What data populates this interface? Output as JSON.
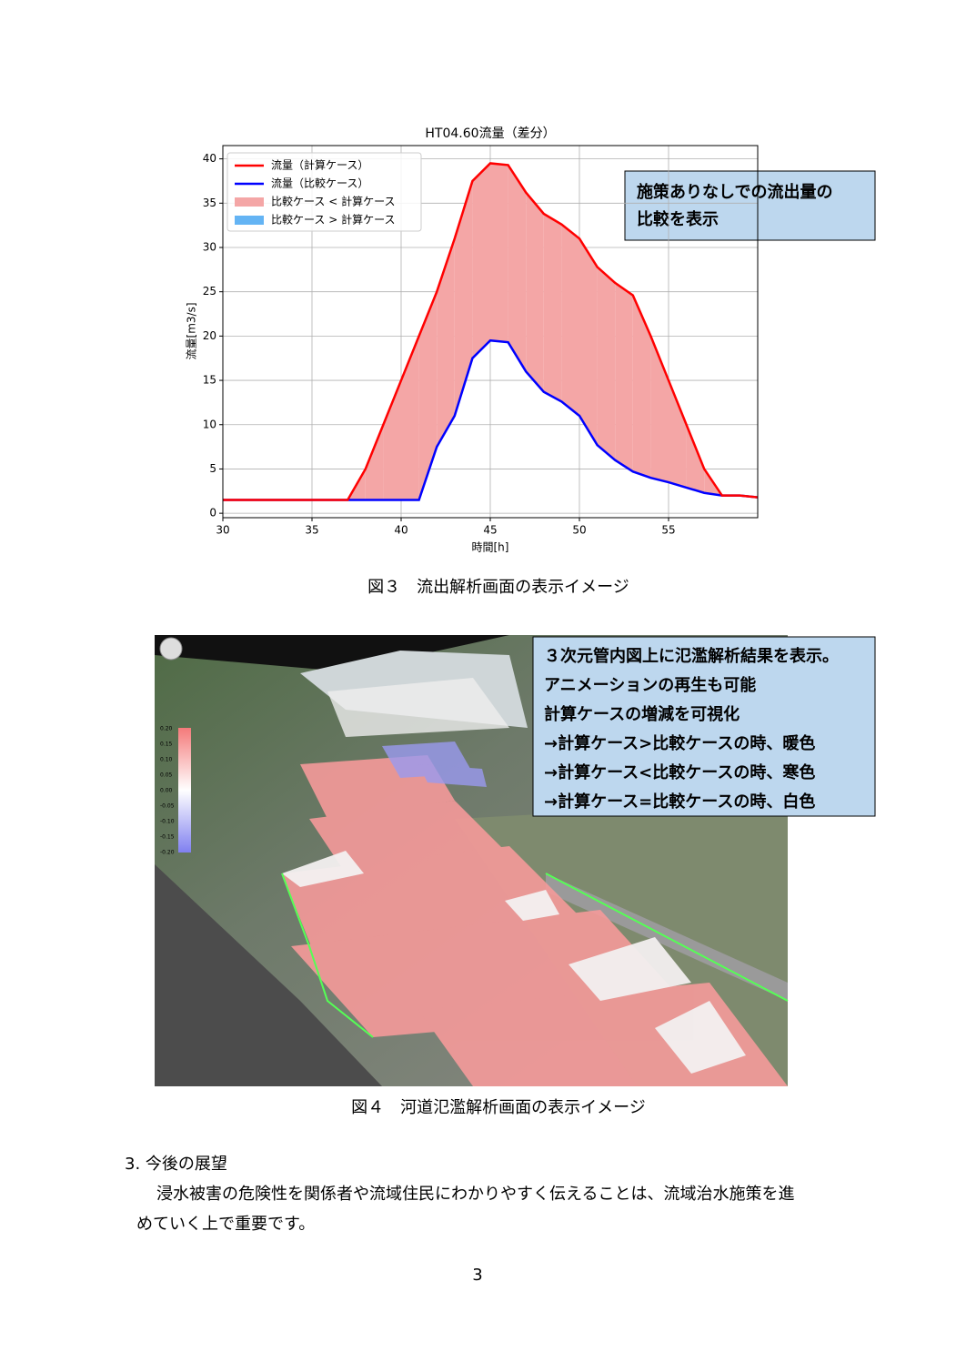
{
  "chart_data": {
    "type": "line",
    "title": "HT04.60流量（差分）",
    "x_label": "時間[h]",
    "y_label": "流量[m3/s]",
    "x": [
      30,
      31,
      32,
      33,
      34,
      35,
      36,
      37,
      38,
      39,
      40,
      41,
      42,
      43,
      44,
      45,
      46,
      47,
      48,
      49,
      50,
      51,
      52,
      53,
      54,
      55,
      56,
      57,
      58,
      59,
      60
    ],
    "series": [
      {
        "name": "流量（計算ケース）",
        "color": "#ff0000",
        "values": [
          1.5,
          1.5,
          1.5,
          1.5,
          1.5,
          1.5,
          1.5,
          1.5,
          5,
          10,
          15,
          20,
          25,
          31,
          37.5,
          39.5,
          39.3,
          36.2,
          33.8,
          32.6,
          31,
          27.8,
          26,
          24.6,
          20,
          15,
          10,
          5,
          2,
          2,
          1.8
        ]
      },
      {
        "name": "流量（比較ケース）",
        "color": "#0000ff",
        "values": [
          1.5,
          1.5,
          1.5,
          1.5,
          1.5,
          1.5,
          1.5,
          1.5,
          1.5,
          1.5,
          1.5,
          1.5,
          7.5,
          11,
          17.5,
          19.5,
          19.3,
          16,
          13.7,
          12.6,
          11,
          7.7,
          6,
          4.7,
          4,
          3.5,
          2.9,
          2.3,
          2,
          2,
          1.8
        ]
      }
    ],
    "fills": [
      {
        "name": "比較ケース < 計算ケース",
        "color": "#f4a6a6"
      },
      {
        "name": "比較ケース > 計算ケース",
        "color": "#64b4f4"
      }
    ],
    "xlim": [
      30,
      60
    ],
    "xticks": [
      30,
      35,
      40,
      45,
      50,
      55
    ],
    "ylim": [
      -0.5,
      41.5
    ],
    "yticks": [
      0,
      5,
      10,
      15,
      20,
      25,
      30,
      35,
      40
    ],
    "grid": true,
    "legend": "upper left"
  },
  "callout1": [
    "施策ありなしでの流出量の",
    "比較を表示"
  ],
  "figure3_caption": "図３　流出解析画面の表示イメージ",
  "map": {
    "colorbar_labels": [
      "0.20",
      "0.15",
      "0.10",
      "0.05",
      "0.00",
      "-0.05",
      "-0.10",
      "-0.15",
      "-0.20"
    ]
  },
  "callout2": [
    "３次元管内図上に氾濫解析結果を表示。",
    "アニメーションの再生も可能",
    "計算ケースの増減を可視化",
    "→計算ケース>比較ケースの時、暖色",
    "→計算ケース<比較ケースの時、寒色",
    "→計算ケース=比較ケースの時、白色"
  ],
  "figure4_caption": "図４　河道氾濫解析画面の表示イメージ",
  "section": {
    "heading": "3.  今後の展望",
    "lines": [
      "浸水被害の危険性を関係者や流域住民にわかりやすく伝えることは、流域治水施策を進",
      "めていく上で重要です。"
    ]
  },
  "page_number": "3"
}
